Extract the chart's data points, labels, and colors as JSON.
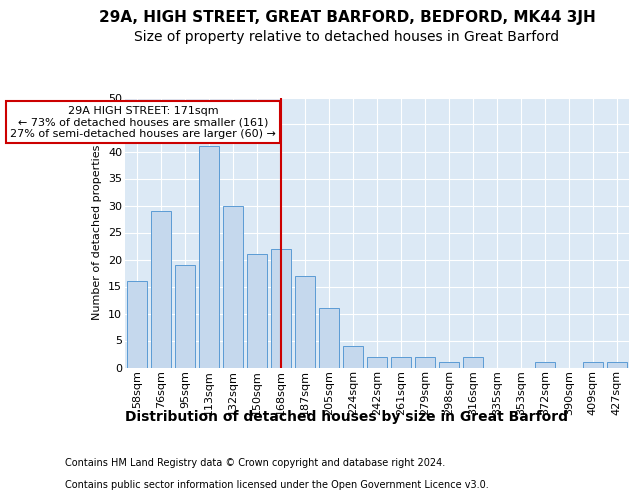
{
  "title1": "29A, HIGH STREET, GREAT BARFORD, BEDFORD, MK44 3JH",
  "title2": "Size of property relative to detached houses in Great Barford",
  "xlabel": "Distribution of detached houses by size in Great Barford",
  "ylabel": "Number of detached properties",
  "footnote1": "Contains HM Land Registry data © Crown copyright and database right 2024.",
  "footnote2": "Contains public sector information licensed under the Open Government Licence v3.0.",
  "annotation_title": "29A HIGH STREET: 171sqm",
  "annotation_line1": "← 73% of detached houses are smaller (161)",
  "annotation_line2": "27% of semi-detached houses are larger (60) →",
  "categories": [
    "58sqm",
    "76sqm",
    "95sqm",
    "113sqm",
    "132sqm",
    "150sqm",
    "168sqm",
    "187sqm",
    "205sqm",
    "224sqm",
    "242sqm",
    "261sqm",
    "279sqm",
    "298sqm",
    "316sqm",
    "335sqm",
    "353sqm",
    "372sqm",
    "390sqm",
    "409sqm",
    "427sqm"
  ],
  "values": [
    16,
    29,
    19,
    41,
    30,
    21,
    22,
    17,
    11,
    4,
    2,
    2,
    2,
    1,
    2,
    0,
    0,
    1,
    0,
    1,
    1
  ],
  "bar_color": "#c5d8ed",
  "bar_edge_color": "#5b9bd5",
  "red_line_index": 6,
  "ylim": [
    0,
    50
  ],
  "yticks": [
    0,
    5,
    10,
    15,
    20,
    25,
    30,
    35,
    40,
    45,
    50
  ],
  "bg_color": "#ffffff",
  "plot_bg_color": "#dce9f5",
  "grid_color": "#ffffff",
  "annotation_box_color": "#ffffff",
  "annotation_box_edge": "#cc0000",
  "red_line_color": "#cc0000",
  "title1_fontsize": 11,
  "title2_fontsize": 10,
  "xlabel_fontsize": 10,
  "ylabel_fontsize": 8,
  "tick_fontsize": 8,
  "footnote_fontsize": 7
}
